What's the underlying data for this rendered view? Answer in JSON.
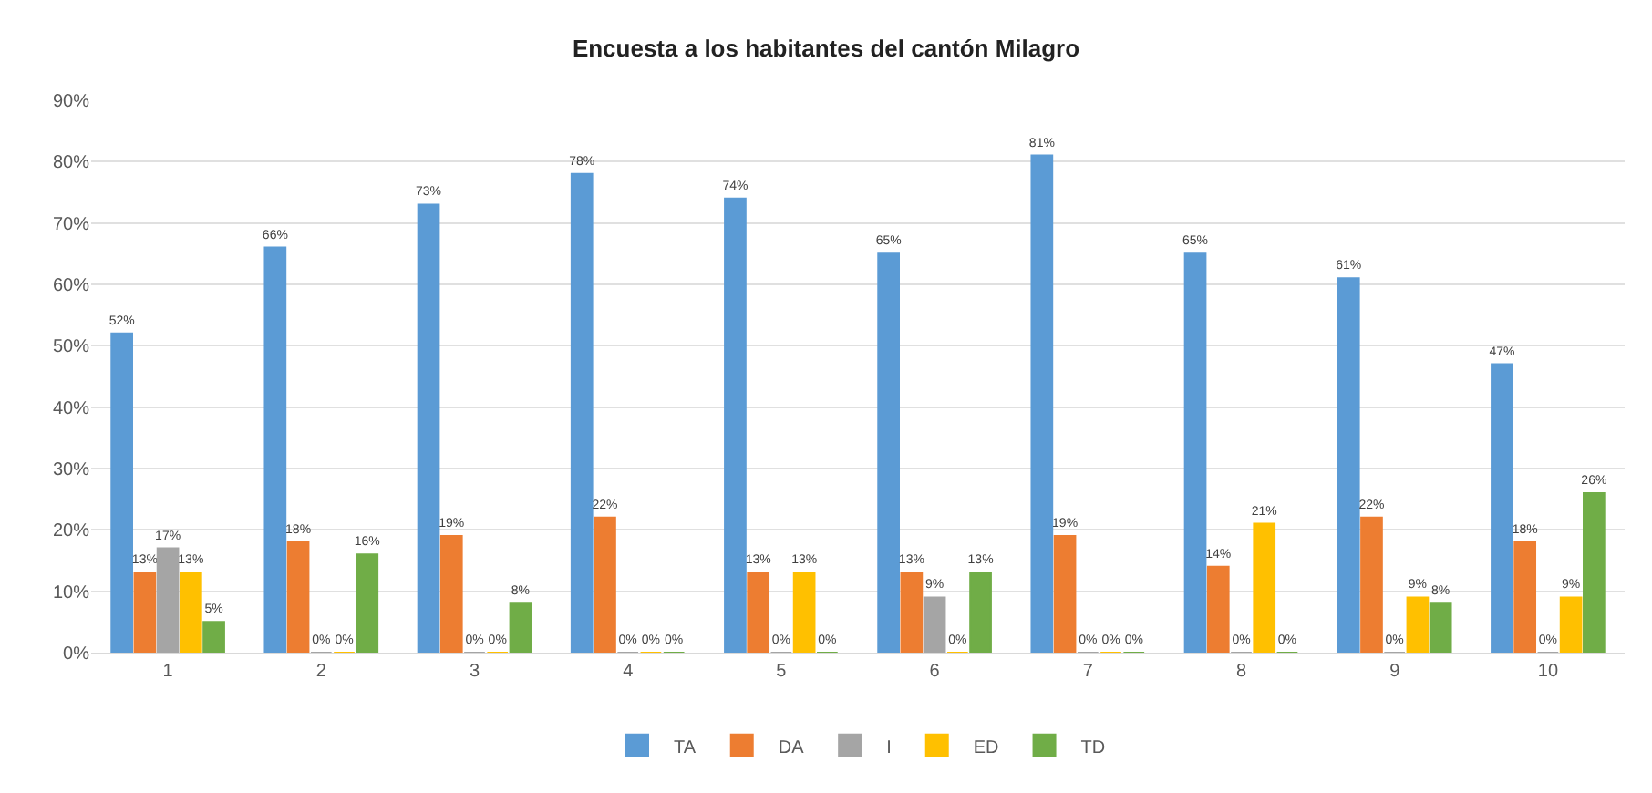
{
  "chart_data": {
    "type": "bar",
    "title": "Encuesta a los habitantes del cantón Milagro",
    "categories": [
      "1",
      "2",
      "3",
      "4",
      "5",
      "6",
      "7",
      "8",
      "9",
      "10"
    ],
    "series": [
      {
        "name": "TA",
        "color": "#5b9bd5",
        "values": [
          52,
          66,
          73,
          78,
          74,
          65,
          81,
          65,
          61,
          47
        ],
        "value_labels": [
          "52%",
          "66%",
          "73%",
          "78%",
          "74%",
          "65%",
          "81%",
          "65%",
          "61%",
          "47%"
        ]
      },
      {
        "name": "DA",
        "color": "#ed7d31",
        "values": [
          13,
          18,
          19,
          22,
          13,
          13,
          19,
          14,
          22,
          18
        ],
        "value_labels": [
          "13%",
          "18%",
          "19%",
          "22%",
          "13%",
          "13%",
          "19%",
          "14%",
          "22%",
          "18%"
        ]
      },
      {
        "name": "I",
        "color": "#a5a5a5",
        "values": [
          17,
          0,
          0,
          0,
          0,
          9,
          0,
          0,
          0,
          0
        ],
        "value_labels": [
          "17%",
          "0%",
          "0%",
          "0%",
          "0%",
          "9%",
          "0%",
          "0%",
          "0%",
          "0%"
        ]
      },
      {
        "name": "ED",
        "color": "#ffc000",
        "values": [
          13,
          0,
          0,
          0,
          13,
          0,
          0,
          21,
          9,
          9
        ],
        "value_labels": [
          "13%",
          "0%",
          "0%",
          "0%",
          "13%",
          "0%",
          "0%",
          "21%",
          "9%",
          "9%"
        ]
      },
      {
        "name": "TD",
        "color": "#70ad47",
        "values": [
          5,
          16,
          8,
          0,
          0,
          13,
          0,
          0,
          8,
          26
        ],
        "value_labels": [
          "5%",
          "16%",
          "8%",
          "0%",
          "0%",
          "13%",
          "0%",
          "0%",
          "8%",
          "26%"
        ]
      }
    ],
    "ylim": [
      0,
      90
    ],
    "yticks": [
      {
        "value": 0,
        "label": "0%"
      },
      {
        "value": 10,
        "label": "10%"
      },
      {
        "value": 20,
        "label": "20%"
      },
      {
        "value": 30,
        "label": "30%"
      },
      {
        "value": 40,
        "label": "40%"
      },
      {
        "value": 50,
        "label": "50%"
      },
      {
        "value": 60,
        "label": "60%"
      },
      {
        "value": 70,
        "label": "70%"
      },
      {
        "value": 80,
        "label": "80%"
      },
      {
        "value": 90,
        "label": "90%"
      }
    ],
    "grid": "y",
    "legend": "bottom"
  }
}
